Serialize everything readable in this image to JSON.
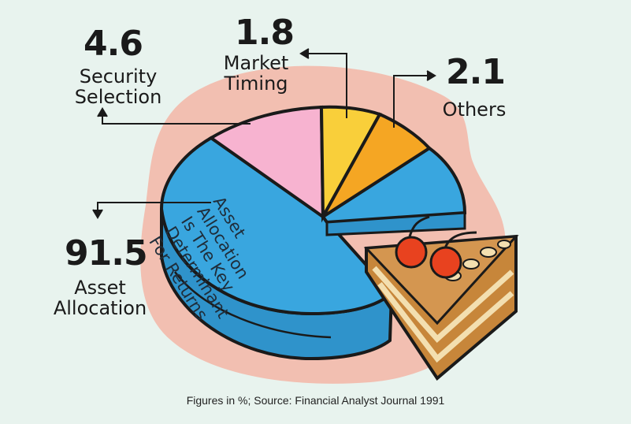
{
  "chart_data": {
    "type": "pie",
    "slices": [
      {
        "value": 91.5,
        "label": "Asset Allocation",
        "color": "#39a6df"
      },
      {
        "value": 4.6,
        "label": "Security Selection",
        "color": "#f7b3d0"
      },
      {
        "value": 1.8,
        "label": "Market Timing",
        "color": "#f9cf3a"
      },
      {
        "value": 2.1,
        "label": "Others",
        "color": "#f5a623"
      }
    ],
    "annotation": [
      "Asset",
      "Allocation",
      "Is The Key",
      "Determinant",
      "For Returns"
    ],
    "values_text": {
      "asset": "91.5",
      "security": "4.6",
      "market": "1.8",
      "others": "2.1"
    },
    "footnote": "Figures in %;  Source: Financial Analyst Journal 1991"
  },
  "colors": {
    "background": "#e8f3ee",
    "blob": "#f2bfb1",
    "outline": "#1a1a1a",
    "cake": "#c7863a",
    "cherry": "#e8421f"
  }
}
